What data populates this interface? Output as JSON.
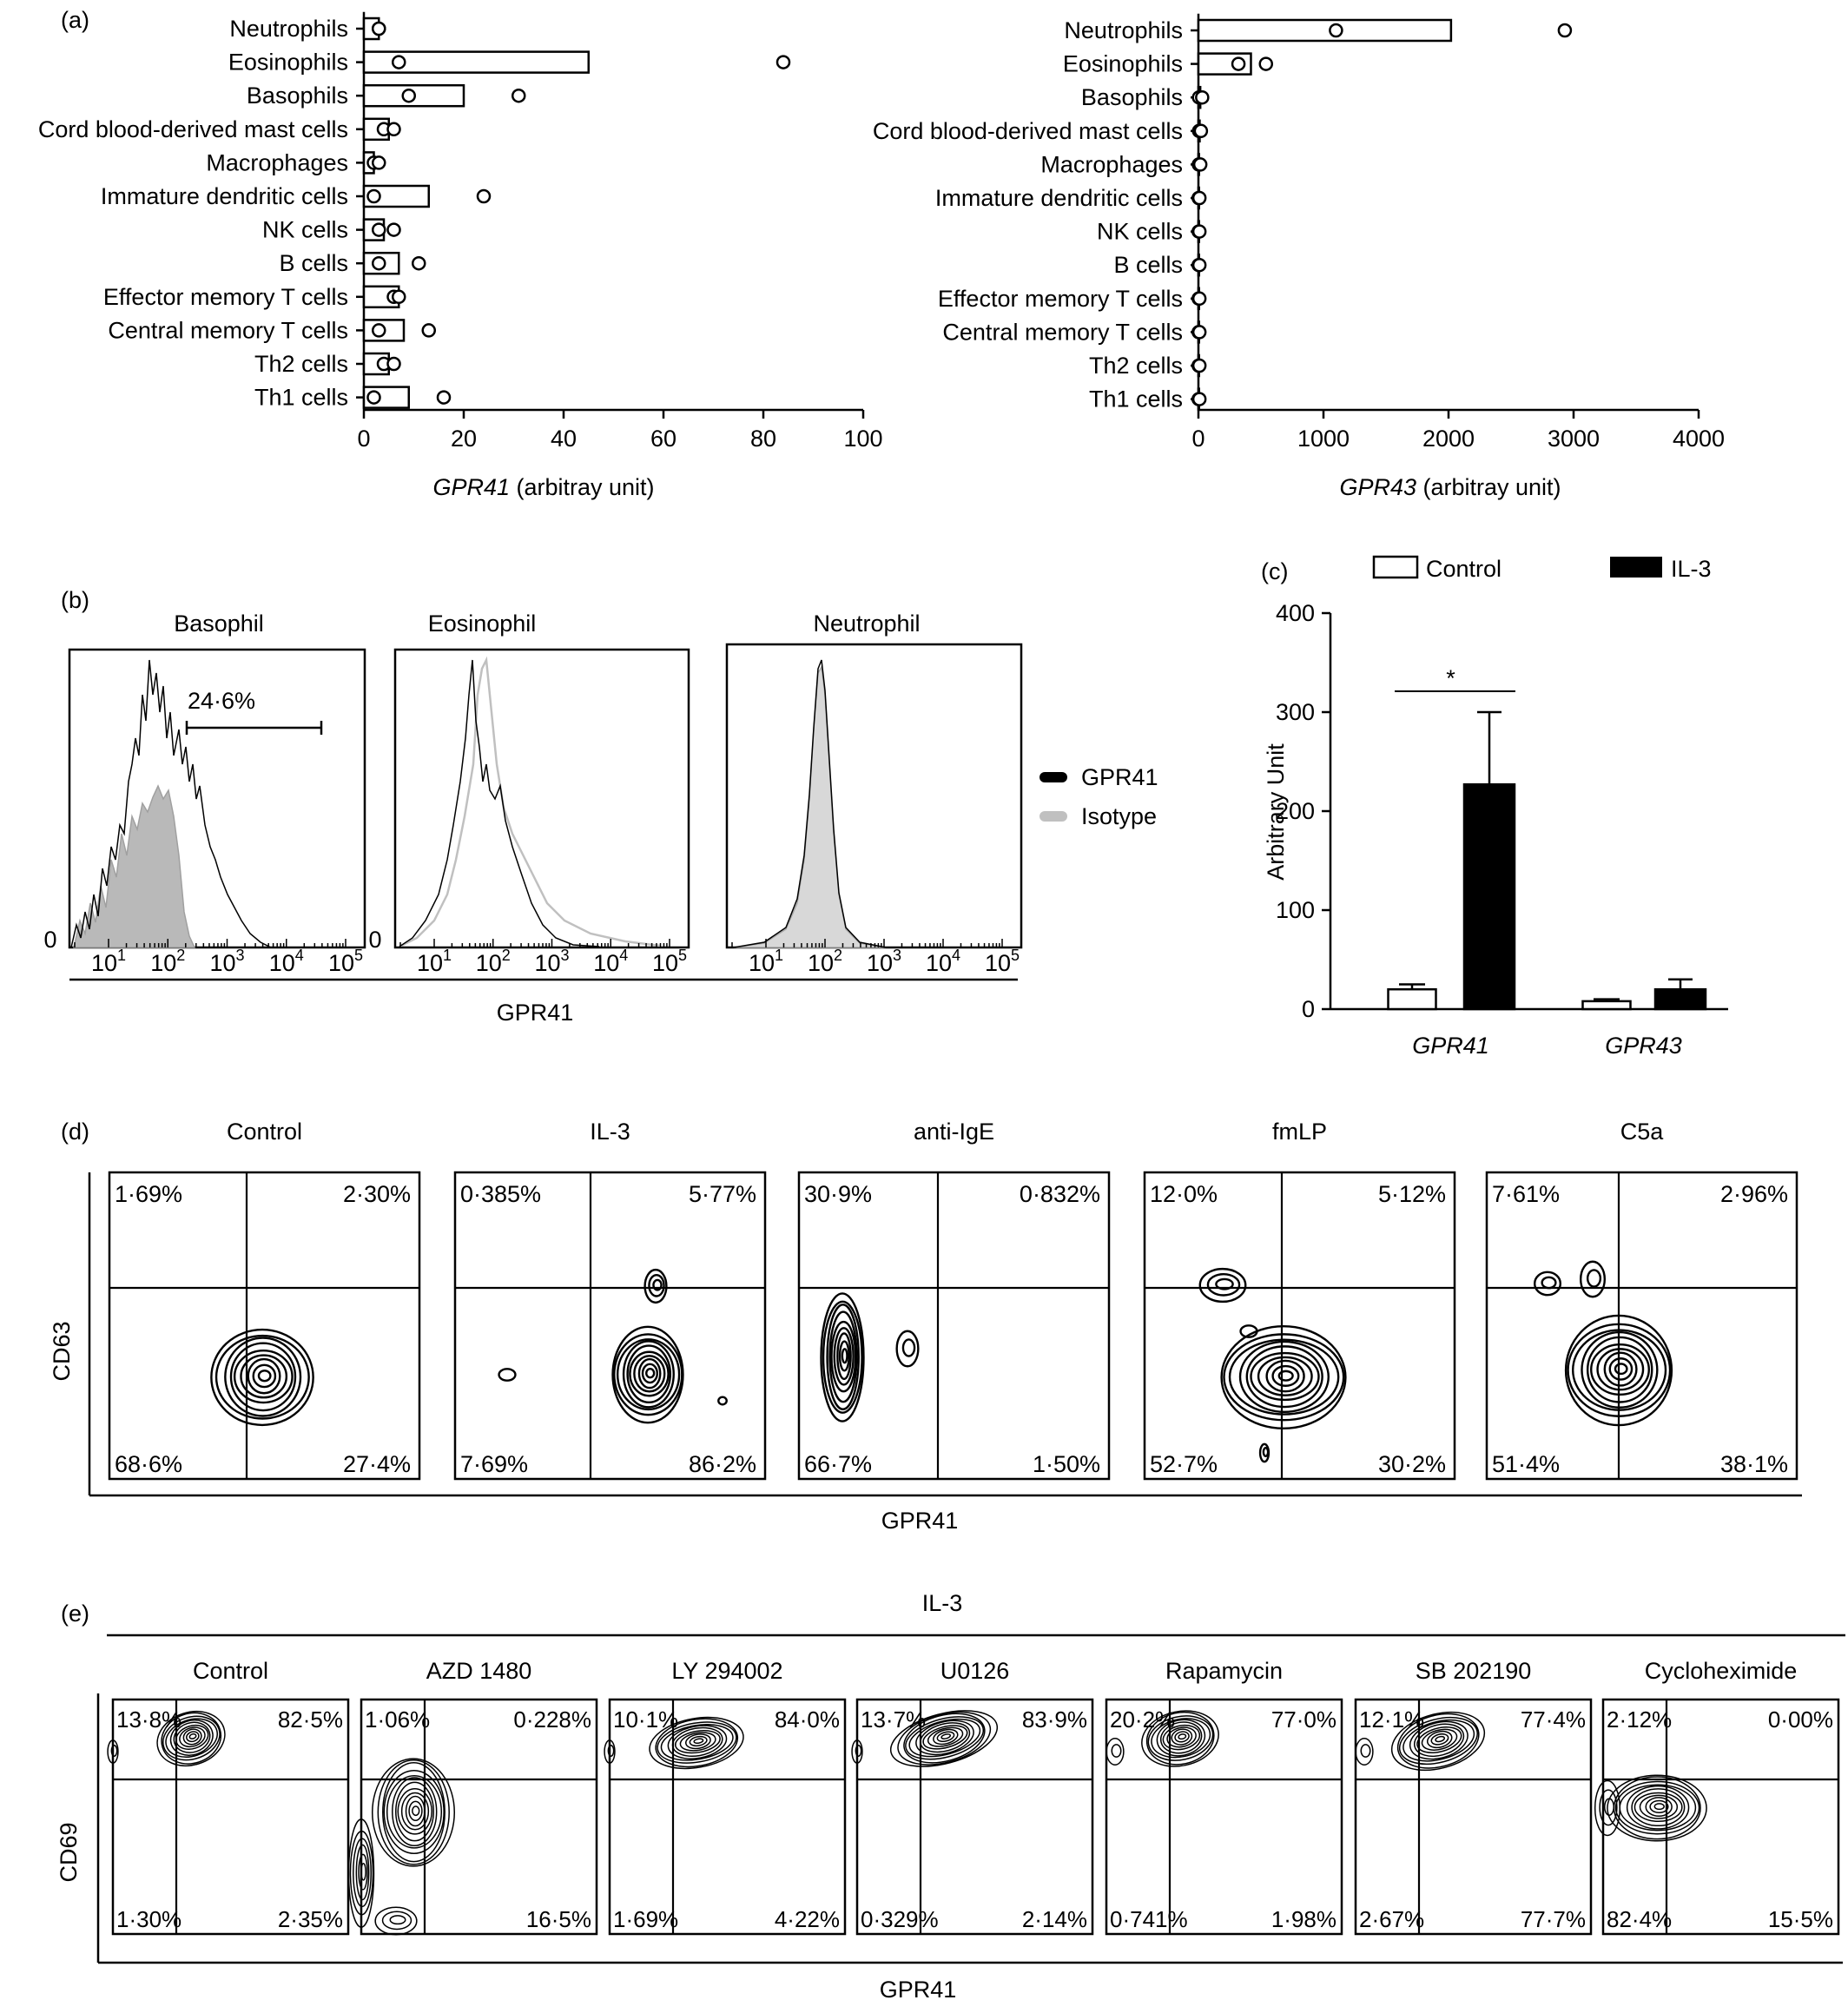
{
  "panel_a": {
    "label": "(a)",
    "categories": [
      "Neutrophils",
      "Eosinophils",
      "Basophils",
      "Cord blood-derived  mast cells",
      "Macrophages",
      "Immature dendritic cells",
      "NK cells",
      "B cells",
      "Effector memory T cells",
      "Central memory T cells",
      "Th2 cells",
      "Th1 cells"
    ],
    "categories_right": [
      "Neutrophils",
      "Eosinophils",
      "Basophils",
      "Cord blood-derived mast cells",
      "Macrophages",
      "Immature dendritic cells",
      "NK cells",
      "B cells",
      "Effector memory T cells",
      "Central memory T cells",
      "Th2 cells",
      "Th1 cells"
    ],
    "left_xlabel_gene": "GPR41",
    "left_xlabel_unit": " (arbitray unit)",
    "right_xlabel_gene": "GPR43",
    "right_xlabel_unit": " (arbitray unit)"
  },
  "panel_b": {
    "label": "(b)",
    "titles": [
      "Basophil",
      "Eosinophil",
      "Neutrophil"
    ],
    "gate_label": "24·6%",
    "zero_label": "0",
    "xlabel": "GPR41",
    "legend": [
      "GPR41",
      "Isotype"
    ],
    "colors": {
      "gpr41": "#000000",
      "isotype": "#c0c0c0"
    }
  },
  "panel_c": {
    "label": "(c)",
    "legend": [
      "Control",
      "IL-3"
    ],
    "ylabel": "Arbitrary Unit",
    "significance": "*"
  },
  "panel_d": {
    "label": "(d)",
    "titles": [
      "Control",
      "IL-3",
      "anti-IgE",
      "fmLP",
      "C5a"
    ],
    "quadrants": [
      [
        "1·69%",
        "2·30%",
        "68·6%",
        "27·4%"
      ],
      [
        "0·385%",
        "5·77%",
        "7·69%",
        "86·2%"
      ],
      [
        "30·9%",
        "0·832%",
        "66·7%",
        "1·50%"
      ],
      [
        "12·0%",
        "5·12%",
        "52·7%",
        "30·2%"
      ],
      [
        "7·61%",
        "2·96%",
        "51·4%",
        "38·1%"
      ]
    ],
    "ylabel": "CD63",
    "xlabel": "GPR41"
  },
  "panel_e": {
    "label": "(e)",
    "group_label": "IL-3",
    "titles": [
      "Control",
      "AZD 1480",
      "LY 294002",
      "U0126",
      "Rapamycin",
      "SB 202190",
      "Cycloheximide"
    ],
    "quadrants": [
      [
        "13·8%",
        "82·5%",
        "1·30%",
        "2·35%"
      ],
      [
        "1·06%",
        "0·228%",
        "",
        "16·5%"
      ],
      [
        "10·1%",
        "84·0%",
        "1·69%",
        "4·22%"
      ],
      [
        "13·7%",
        "83·9%",
        "0·329%",
        "2·14%"
      ],
      [
        "20·2%",
        "77·0%",
        "0·741%",
        "1·98%"
      ],
      [
        "12·1%",
        "77·4%",
        "2·67%",
        "77·7%"
      ],
      [
        "2·12%",
        "0·00%",
        "82·4%",
        "15·5%"
      ]
    ],
    "ylabel": "CD69",
    "xlabel": "GPR41"
  },
  "chart_data": [
    {
      "type": "bar",
      "panel": "a-left",
      "categories": [
        "Neutrophils",
        "Eosinophils",
        "Basophils",
        "Cord blood-derived  mast cells",
        "Macrophages",
        "Immature dendritic cells",
        "NK cells",
        "B cells",
        "Effector memory T cells",
        "Central memory T cells",
        "Th2 cells",
        "Th1 cells"
      ],
      "values": [
        3,
        45,
        20,
        5,
        2,
        13,
        4,
        7,
        7,
        8,
        5,
        9
      ],
      "points": [
        [
          3,
          3
        ],
        [
          7,
          84
        ],
        [
          9,
          31
        ],
        [
          4,
          6
        ],
        [
          2,
          3
        ],
        [
          2,
          24
        ],
        [
          3,
          6
        ],
        [
          3,
          11
        ],
        [
          6,
          7
        ],
        [
          3,
          13
        ],
        [
          4,
          6
        ],
        [
          2,
          16
        ]
      ],
      "xlabel": "GPR41 (arbitray unit)",
      "xlim": [
        0,
        100
      ],
      "xticks": [
        0,
        20,
        40,
        60,
        80,
        100
      ]
    },
    {
      "type": "bar",
      "panel": "a-right",
      "categories": [
        "Neutrophils",
        "Eosinophils",
        "Basophils",
        "Cord blood-derived mast cells",
        "Macrophages",
        "Immature dendritic cells",
        "NK cells",
        "B cells",
        "Effector memory T cells",
        "Central memory T cells",
        "Th2 cells",
        "Th1 cells"
      ],
      "values": [
        2020,
        420,
        15,
        10,
        5,
        5,
        5,
        5,
        5,
        5,
        5,
        5
      ],
      "points": [
        [
          1100,
          2930
        ],
        [
          320,
          540
        ],
        [
          5,
          30
        ],
        [
          5,
          20
        ],
        [
          3,
          15
        ],
        [
          2,
          8
        ],
        [
          2,
          8
        ],
        [
          2,
          8
        ],
        [
          2,
          8
        ],
        [
          2,
          8
        ],
        [
          2,
          8
        ],
        [
          2,
          8
        ]
      ],
      "xlabel": "GPR43 (arbitray unit)",
      "xlim": [
        0,
        4000
      ],
      "xticks": [
        0,
        1000,
        2000,
        3000,
        4000
      ]
    },
    {
      "type": "area",
      "panel": "b",
      "xscale": "log",
      "xticks": [
        "10^1",
        "10^2",
        "10^3",
        "10^4",
        "10^5"
      ]
    },
    {
      "type": "bar",
      "panel": "c",
      "categories": [
        "GPR41",
        "GPR43"
      ],
      "series": [
        {
          "name": "Control",
          "values": [
            20,
            8
          ],
          "errors": [
            5,
            2
          ]
        },
        {
          "name": "IL-3",
          "values": [
            227,
            20
          ],
          "errors": [
            73,
            10
          ]
        }
      ],
      "ylabel": "Arbitrary Unit",
      "ylim": [
        0,
        400
      ],
      "yticks": [
        0,
        100,
        200,
        300,
        400
      ]
    }
  ]
}
